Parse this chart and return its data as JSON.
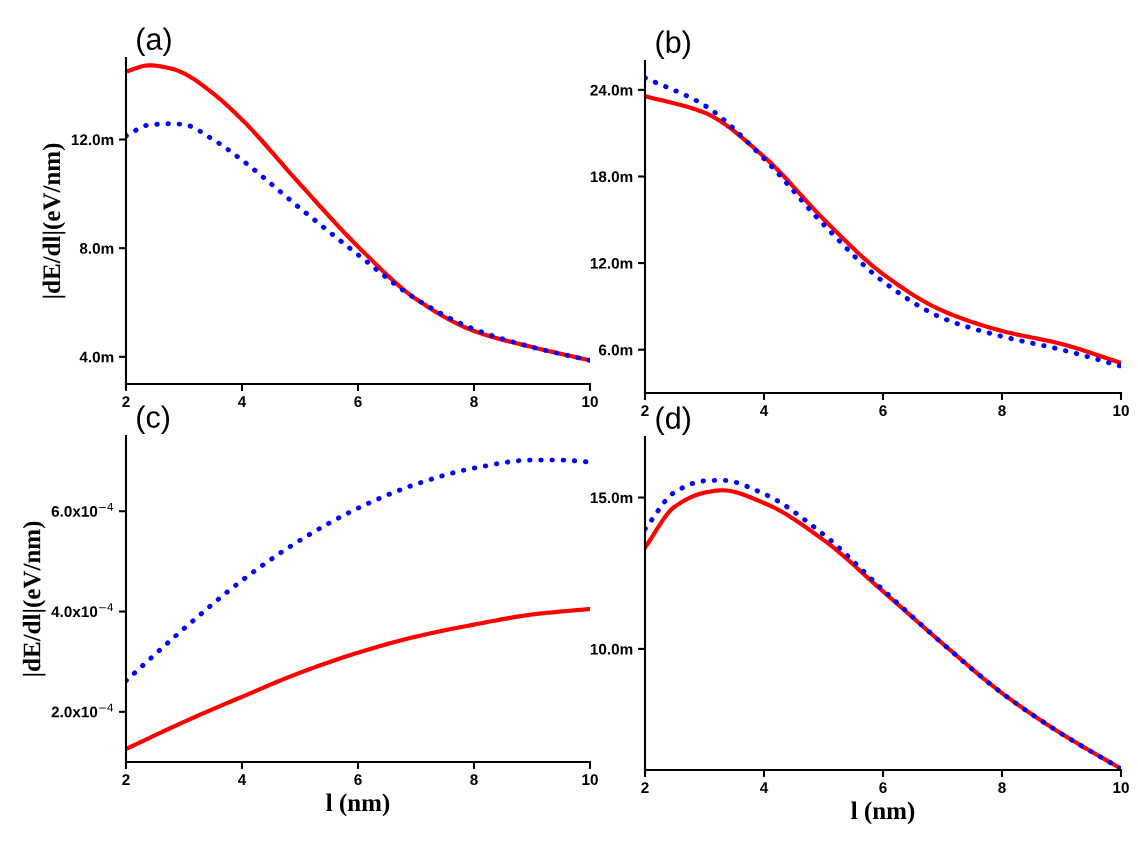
{
  "chart_data": [
    {
      "type": "line",
      "title": "(a)",
      "ylabel": "|dE/dl|(eV/nm)",
      "x": [
        2,
        2.4,
        2.8,
        3,
        3.5,
        4,
        5,
        6,
        7,
        8,
        9,
        10
      ],
      "xlim": [
        2,
        10
      ],
      "xticks": [
        2,
        4,
        6,
        8,
        10
      ],
      "ylim": [
        3,
        15
      ],
      "yticks": [
        {
          "value": 4,
          "label": "4.0m"
        },
        {
          "value": 8,
          "label": "8.0m"
        },
        {
          "value": 12,
          "label": "12.0m"
        }
      ],
      "series": [
        {
          "color": "#ff0000",
          "line_style": "solid",
          "values": [
            14.5,
            14.73,
            14.6,
            14.43,
            13.7,
            12.73,
            10.36,
            8.06,
            6.13,
            4.95,
            4.36,
            3.87
          ]
        },
        {
          "color": "#0000ff",
          "line_style": "dotted",
          "values": [
            12.13,
            12.54,
            12.58,
            12.55,
            12.0,
            11.24,
            9.47,
            7.76,
            6.13,
            5.02,
            4.36,
            3.87
          ]
        }
      ],
      "grid": false,
      "legend": false
    },
    {
      "type": "line",
      "title": "(b)",
      "x": [
        2,
        3,
        4,
        5,
        6,
        7,
        8,
        9,
        10
      ],
      "xlim": [
        2,
        10
      ],
      "xticks": [
        2,
        4,
        6,
        8,
        10
      ],
      "ylim": [
        3,
        26
      ],
      "yticks": [
        {
          "value": 6,
          "label": "6.0m"
        },
        {
          "value": 12,
          "label": "12.0m"
        },
        {
          "value": 18,
          "label": "18.0m"
        },
        {
          "value": 24,
          "label": "24.0m"
        }
      ],
      "series": [
        {
          "color": "#ff0000",
          "line_style": "solid",
          "values": [
            23.57,
            22.42,
            19.37,
            15.05,
            11.24,
            8.7,
            7.3,
            6.4,
            5.08
          ]
        },
        {
          "color": "#0000ff",
          "line_style": "dotted",
          "values": [
            24.84,
            22.93,
            19.24,
            14.67,
            10.73,
            8.19,
            6.92,
            6.0,
            4.86
          ]
        }
      ],
      "grid": false,
      "legend": false
    },
    {
      "type": "line",
      "title": "(c)",
      "xlabel": "l (nm)",
      "ylabel": "|dE/dl|(eV/nm)",
      "x": [
        2,
        3,
        4,
        5,
        6,
        7,
        8,
        9,
        9.5,
        10
      ],
      "xlim": [
        2,
        10
      ],
      "xticks": [
        2,
        4,
        6,
        8,
        10
      ],
      "ylim": [
        0.0001,
        0.00075
      ],
      "yticks": [
        {
          "value": 0.0002,
          "label": "2.0x10$^{−4}$"
        },
        {
          "value": 0.0004,
          "label": "4.0x10$^{−4}$"
        },
        {
          "value": 0.0006,
          "label": "6.0x10$^{−4}$"
        }
      ],
      "series": [
        {
          "color": "#ff0000",
          "line_style": "solid",
          "values": [
            0.000126,
            0.00018,
            0.00023,
            0.000278,
            0.000318,
            0.00035,
            0.000374,
            0.000394,
            0.0004,
            0.000405
          ]
        },
        {
          "color": "#0000ff",
          "line_style": "dotted",
          "values": [
            0.000262,
            0.000366,
            0.000462,
            0.000542,
            0.000606,
            0.000654,
            0.000686,
            0.000702,
            0.000702,
            0.000698
          ]
        }
      ],
      "grid": false,
      "legend": false
    },
    {
      "type": "line",
      "title": "(d)",
      "xlabel": "l (nm)",
      "x": [
        2,
        2.5,
        3,
        3.3,
        4,
        5,
        6,
        7,
        8,
        9,
        10
      ],
      "xlim": [
        2,
        10
      ],
      "xticks": [
        2,
        4,
        6,
        8,
        10
      ],
      "ylim": [
        6,
        17
      ],
      "yticks": [
        {
          "value": 10,
          "label": "10.0m"
        },
        {
          "value": 15,
          "label": "15.0m"
        }
      ],
      "series": [
        {
          "color": "#ff0000",
          "line_style": "solid",
          "values": [
            13.35,
            14.7,
            15.16,
            15.24,
            14.82,
            13.6,
            11.9,
            10.18,
            8.54,
            7.2,
            6.04
          ]
        },
        {
          "color": "#0000ff",
          "line_style": "dotted",
          "values": [
            13.96,
            15.18,
            15.55,
            15.57,
            15.12,
            13.78,
            11.95,
            10.18,
            8.54,
            7.2,
            6.04
          ]
        }
      ],
      "grid": false,
      "legend": false
    }
  ]
}
